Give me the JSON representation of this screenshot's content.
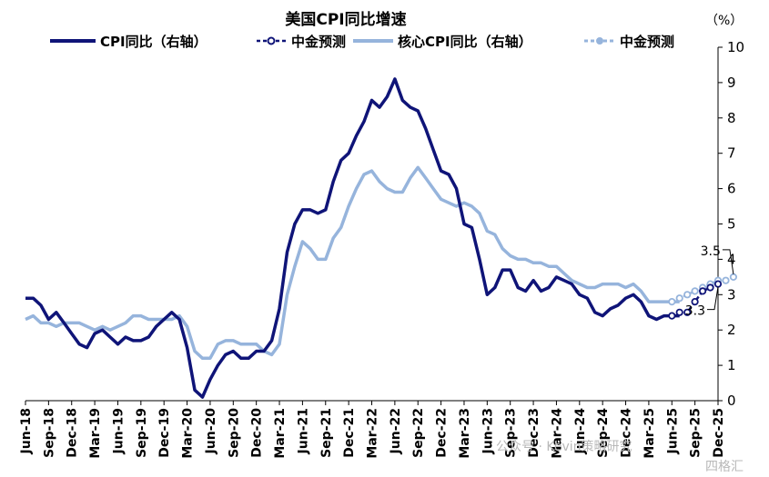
{
  "chart_data": {
    "type": "line",
    "title": "美国CPI同比增速",
    "y_unit": "（%）",
    "ylim": [
      0,
      10
    ],
    "ytick_labels": [
      "0",
      "1",
      "2",
      "3",
      "4",
      "5",
      "6",
      "7",
      "8",
      "9",
      "10"
    ],
    "y_axis_position": "right",
    "grid": false,
    "legend_position": "top",
    "x_tick_labels": [
      "Jun-18",
      "Sep-18",
      "Dec-18",
      "Mar-19",
      "Jun-19",
      "Sep-19",
      "Dec-19",
      "Mar-20",
      "Jun-20",
      "Sep-20",
      "Dec-20",
      "Mar-21",
      "Jun-21",
      "Sep-21",
      "Dec-21",
      "Mar-22",
      "Jun-22",
      "Sep-22",
      "Dec-22",
      "Mar-23",
      "Jun-23",
      "Sep-23",
      "Dec-23",
      "Mar-24",
      "Jun-24",
      "Sep-24",
      "Dec-24",
      "Mar-25",
      "Jun-25",
      "Sep-25",
      "Dec-25"
    ],
    "series": [
      {
        "name": "CPI同比（右轴）",
        "color": "#0f1478",
        "style": "solid",
        "values": [
          2.9,
          2.9,
          2.7,
          2.3,
          2.5,
          2.2,
          1.9,
          1.6,
          1.5,
          1.9,
          2.0,
          1.8,
          1.6,
          1.8,
          1.7,
          1.7,
          1.8,
          2.1,
          2.3,
          2.5,
          2.3,
          1.5,
          0.3,
          0.1,
          0.6,
          1.0,
          1.3,
          1.4,
          1.2,
          1.2,
          1.4,
          1.4,
          1.7,
          2.6,
          4.2,
          5.0,
          5.4,
          5.4,
          5.3,
          5.4,
          6.2,
          6.8,
          7.0,
          7.5,
          7.9,
          8.5,
          8.3,
          8.6,
          9.1,
          8.5,
          8.3,
          8.2,
          7.7,
          7.1,
          6.5,
          6.4,
          6.0,
          5.0,
          4.9,
          4.0,
          3.0,
          3.2,
          3.7,
          3.7,
          3.2,
          3.1,
          3.4,
          3.1,
          3.2,
          3.5,
          3.4,
          3.3,
          3.0,
          2.9,
          2.5,
          2.4,
          2.6,
          2.7,
          2.9,
          3.0,
          2.8,
          2.4,
          2.3,
          2.4,
          2.4,
          2.4
        ]
      },
      {
        "name": "中金预测",
        "color": "#0f1478",
        "style": "dashed-markers",
        "offset": 84,
        "values": [
          2.4,
          2.5,
          2.5,
          2.8,
          3.1,
          3.2,
          3.3
        ]
      },
      {
        "name": "核心CPI同比（右轴）",
        "color": "#96b4dc",
        "style": "solid",
        "values": [
          2.3,
          2.4,
          2.2,
          2.2,
          2.1,
          2.2,
          2.2,
          2.2,
          2.1,
          2.0,
          2.1,
          2.0,
          2.1,
          2.2,
          2.4,
          2.4,
          2.3,
          2.3,
          2.3,
          2.3,
          2.4,
          2.1,
          1.4,
          1.2,
          1.2,
          1.6,
          1.7,
          1.7,
          1.6,
          1.6,
          1.6,
          1.4,
          1.3,
          1.6,
          3.0,
          3.8,
          4.5,
          4.3,
          4.0,
          4.0,
          4.6,
          4.9,
          5.5,
          6.0,
          6.4,
          6.5,
          6.2,
          6.0,
          5.9,
          5.9,
          6.3,
          6.6,
          6.3,
          6.0,
          5.7,
          5.6,
          5.5,
          5.6,
          5.5,
          5.3,
          4.8,
          4.7,
          4.3,
          4.1,
          4.0,
          4.0,
          3.9,
          3.9,
          3.8,
          3.8,
          3.6,
          3.4,
          3.3,
          3.2,
          3.2,
          3.3,
          3.3,
          3.3,
          3.2,
          3.3,
          3.1,
          2.8,
          2.8,
          2.8,
          2.8,
          2.8
        ]
      },
      {
        "name": "中金预测",
        "color": "#96b4dc",
        "style": "dashed-markers",
        "offset": 84,
        "values": [
          2.8,
          2.9,
          3.0,
          3.1,
          3.2,
          3.3,
          3.4,
          3.4,
          3.5
        ]
      }
    ],
    "annotations": [
      "3.5",
      "3.3"
    ]
  },
  "watermark": "公众号 · Kevin策略研究",
  "watermark2": "四格汇"
}
